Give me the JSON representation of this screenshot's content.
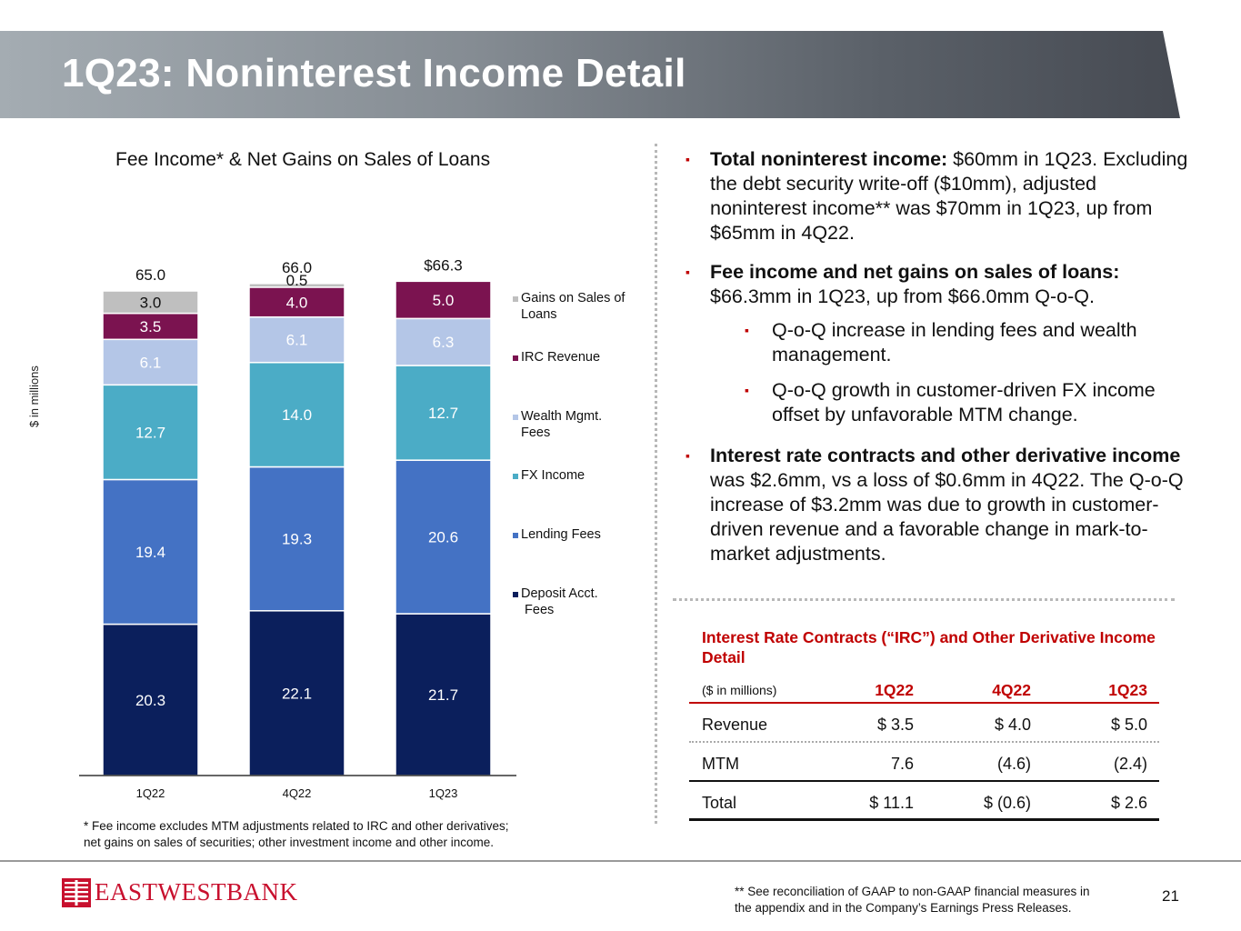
{
  "slide": {
    "title": "1Q23: Noninterest Income Detail",
    "page_number": "21"
  },
  "chart_data": {
    "type": "bar",
    "stacked": true,
    "title": "Fee Income* & Net Gains on Sales of Loans",
    "ylabel": "$ in millions",
    "xlabel": "",
    "categories": [
      "1Q22",
      "4Q22",
      "1Q23"
    ],
    "totals": [
      "65.0",
      "66.0",
      "$66.3"
    ],
    "ylim": [
      0,
      70
    ],
    "series": [
      {
        "name": "Deposit Acct. Fees",
        "legend": "Deposit Acct.\n Fees",
        "color": "#0b1f5c",
        "values": [
          20.3,
          22.1,
          21.7
        ],
        "labels": [
          "20.3",
          "22.1",
          "21.7"
        ]
      },
      {
        "name": "Lending Fees",
        "legend": "Lending Fees",
        "color": "#4472c4",
        "values": [
          19.4,
          19.3,
          20.6
        ],
        "labels": [
          "19.4",
          "19.3",
          "20.6"
        ]
      },
      {
        "name": "FX Income",
        "legend": "FX Income",
        "color": "#4bacc6",
        "values": [
          12.7,
          14.0,
          12.7
        ],
        "labels": [
          "12.7",
          "14.0",
          "12.7"
        ]
      },
      {
        "name": "Wealth Mgmt. Fees",
        "legend": "Wealth Mgmt.\nFees",
        "color": "#b4c6e7",
        "values": [
          6.1,
          6.1,
          6.3
        ],
        "labels": [
          "6.1",
          "6.1",
          "6.3"
        ]
      },
      {
        "name": "IRC Revenue",
        "legend": "IRC Revenue",
        "color": "#7b1350",
        "values": [
          3.5,
          4.0,
          5.0
        ],
        "labels": [
          "3.5",
          "4.0",
          "5.0"
        ]
      },
      {
        "name": "Gains on Sales of Loans",
        "legend": "Gains on Sales of\nLoans",
        "color": "#bfbfbf",
        "values": [
          3.0,
          0.5,
          0.0
        ],
        "labels": [
          "3.0",
          "0.5",
          ""
        ]
      }
    ]
  },
  "chart_footnote": "* Fee income excludes MTM adjustments related to IRC and other derivatives;\nnet gains on sales of securities; other investment income and other income.",
  "bullets": {
    "b1_bold": "Total noninterest income:",
    "b1_text": " $60mm in 1Q23. Excluding the debt security write-off ($10mm), adjusted noninterest income** was $70mm in 1Q23, up from $65mm in 4Q22.",
    "b2_bold": "Fee income and net gains on sales of loans:",
    "b2_text": " $66.3mm in 1Q23, up from $66.0mm Q-o-Q.",
    "s1": "Q-o-Q increase in lending fees and wealth management.",
    "s2": "Q-o-Q growth in customer-driven FX income offset by unfavorable MTM change.",
    "b3_bold": "Interest rate contracts and other derivative income",
    "b3_text": " was $2.6mm, vs a loss of $0.6mm in 4Q22. The Q-o-Q increase of $3.2mm was due to growth in customer-driven revenue and a favorable change in mark-to-market adjustments.",
    "marker": "▪"
  },
  "irc_table": {
    "title": "Interest Rate Contracts (“IRC”) and Other Derivative Income Detail",
    "unit_label": "($ in millions)",
    "columns": [
      "1Q22",
      "4Q22",
      "1Q23"
    ],
    "rows": [
      {
        "label": "Revenue",
        "values": [
          "$  3.5",
          "$  4.0",
          "$  5.0"
        ]
      },
      {
        "label": "MTM",
        "values": [
          "7.6",
          "(4.6)",
          "(2.4)"
        ]
      },
      {
        "label": "Total",
        "values": [
          "$  11.1",
          "$  (0.6)",
          "$  2.6"
        ]
      }
    ]
  },
  "footer": {
    "logo_text": "EASTWESTBANK",
    "note": "** See reconciliation of GAAP to non-GAAP financial measures in\nthe appendix and in the Company’s Earnings Press Releases."
  }
}
